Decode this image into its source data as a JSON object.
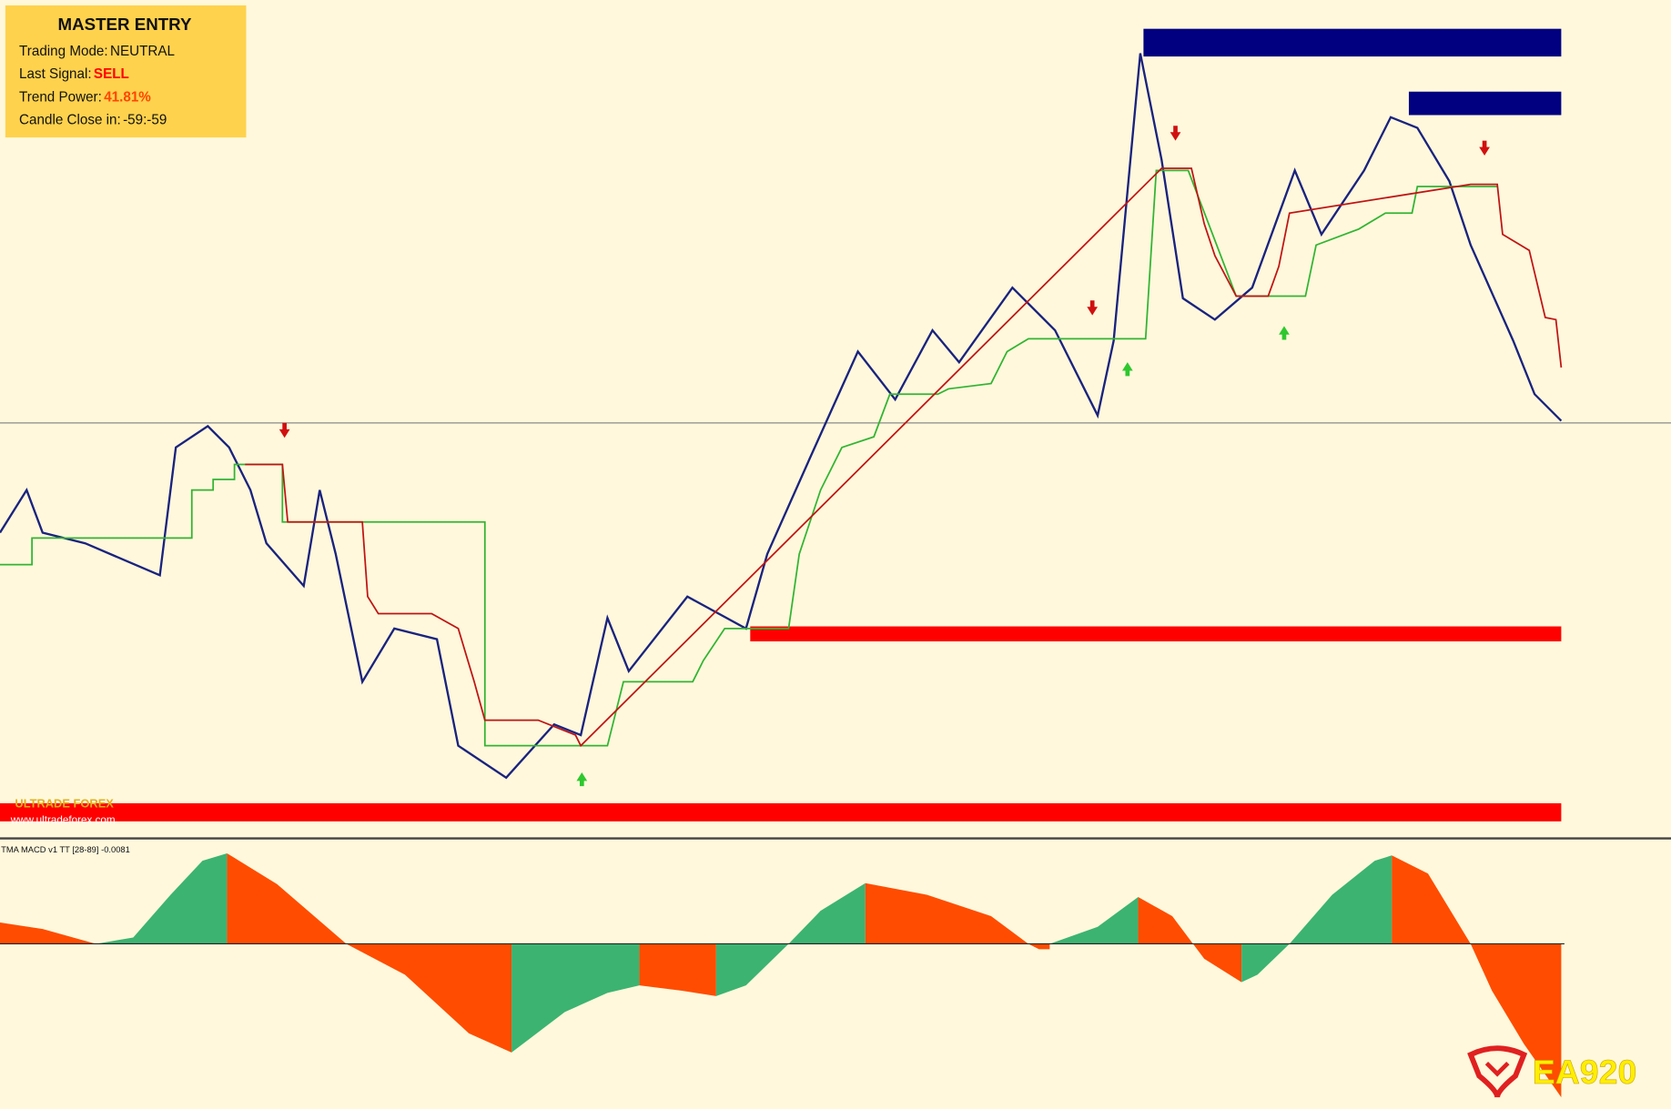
{
  "panel": {
    "title": "MASTER ENTRY",
    "rows": [
      {
        "label": "Trading Mode:",
        "value": "NEUTRAL"
      },
      {
        "label": "Last Signal:",
        "value": "SELL"
      },
      {
        "label": "Trend Power:",
        "value": "41.81%"
      },
      {
        "label": "Candle Close in:",
        "value": "-59:-59"
      }
    ]
  },
  "watermark": {
    "brand": "ULTRADE FOREX",
    "url": "www.ultradeforex.com"
  },
  "indicator": {
    "label": "TMA MACD v1 TT [28-89] -0.0081"
  },
  "logo": {
    "text": "EA920"
  }
}
